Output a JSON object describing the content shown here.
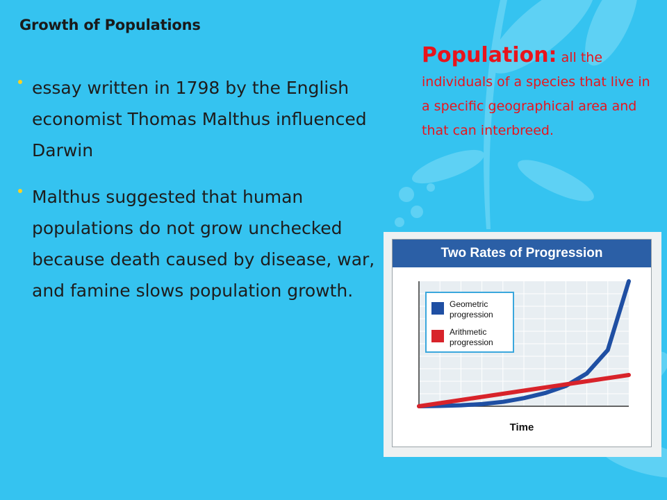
{
  "slide": {
    "title": "Growth of Populations",
    "bullets": [
      "essay written in 1798 by the English economist Thomas Malthus influenced Darwin",
      "Malthus suggested that human populations do not grow unchecked because death caused by disease, war, and famine slows population growth."
    ]
  },
  "definition": {
    "term": "Population:",
    "text": " all the individuals of a species that live in a specific geographical area and that can interbreed."
  },
  "colors": {
    "background": "#35c3f0",
    "definition_text": "#e8141c",
    "bullet_marker": "#ffd21f",
    "chart_header": "#2b5fa6",
    "geometric": "#1f4fa3",
    "arithmetic": "#d8232a",
    "legend_border": "#3aa7dd"
  },
  "chart_data": {
    "type": "line",
    "title": "Two Rates of Progression",
    "xlabel": "Time",
    "ylabel": "",
    "grid": true,
    "legend_position": "top-left",
    "x": [
      0,
      1,
      2,
      3,
      4,
      5,
      6,
      7,
      8,
      9,
      10
    ],
    "series": [
      {
        "name": "Geometric progression",
        "color": "#1f4fa3",
        "values": [
          0,
          0.1,
          0.3,
          0.7,
          1.4,
          2.6,
          4.2,
          6.5,
          10.5,
          18,
          40
        ]
      },
      {
        "name": "Arithmetic progression",
        "color": "#d8232a",
        "values": [
          0,
          1,
          2,
          3,
          4,
          5,
          6,
          7,
          8,
          9,
          10
        ]
      }
    ],
    "xlim": [
      0,
      10
    ],
    "ylim": [
      0,
      40
    ]
  }
}
